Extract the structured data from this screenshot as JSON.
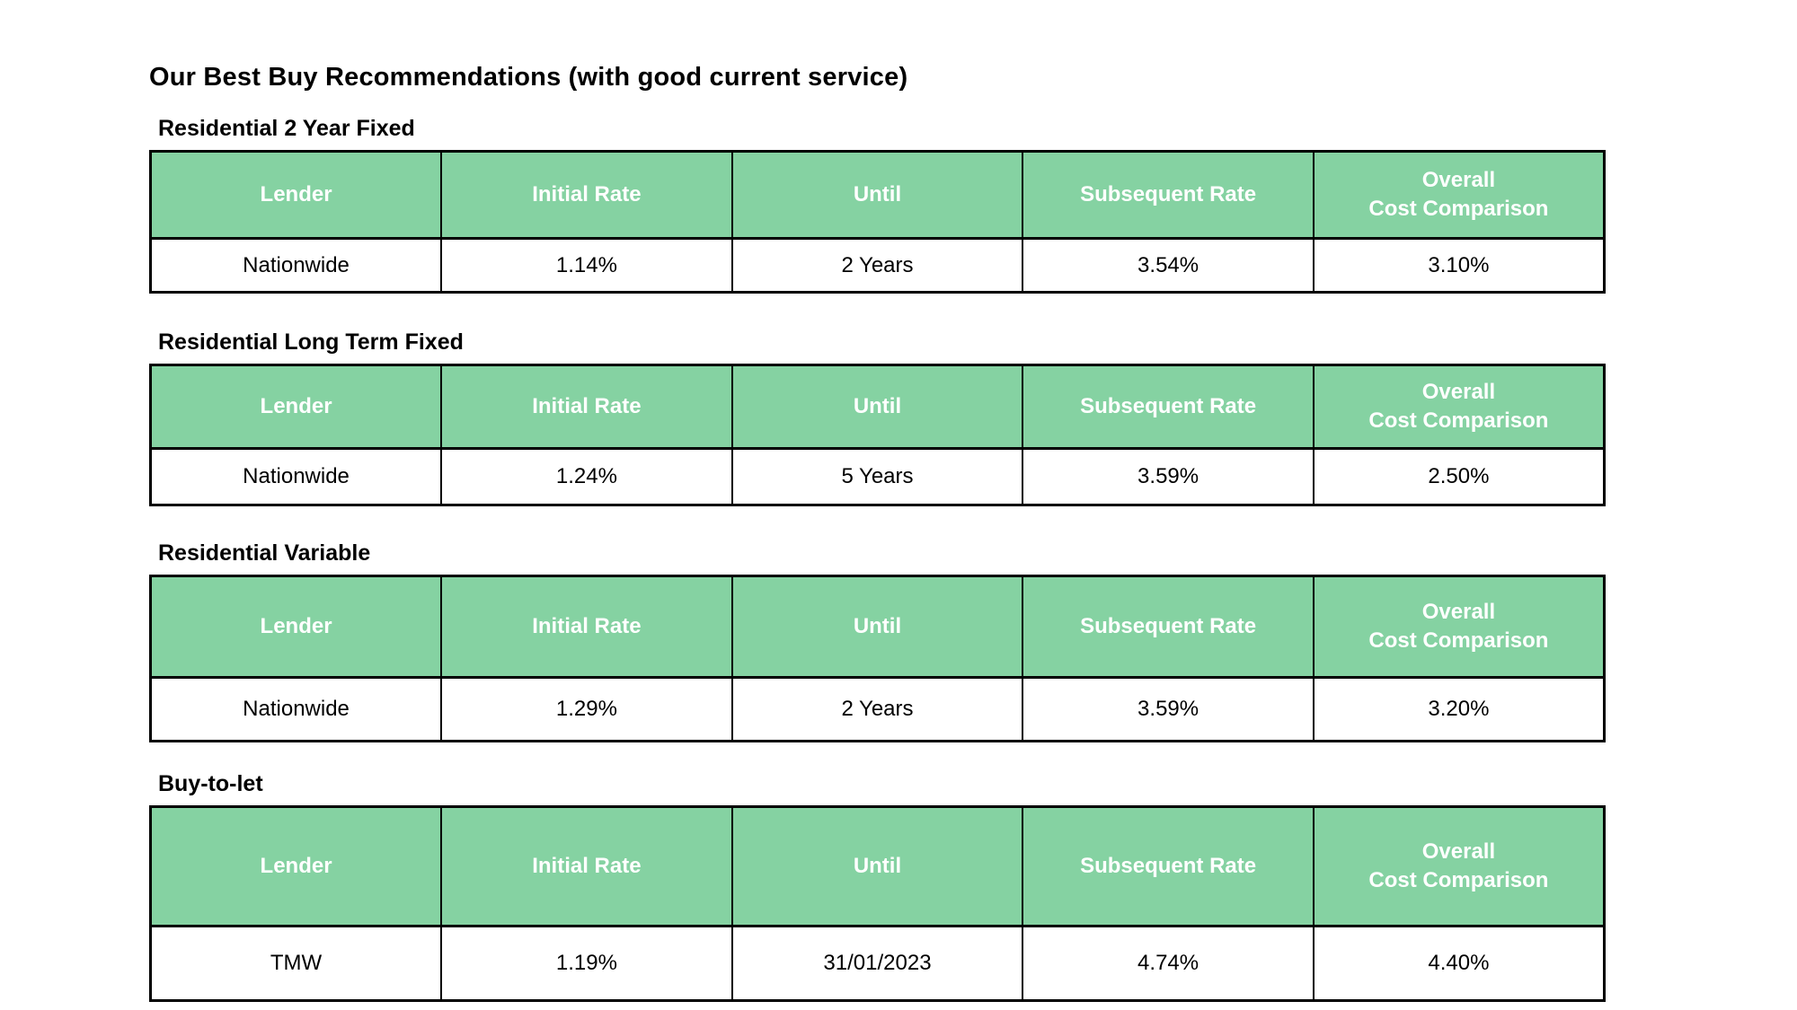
{
  "page": {
    "title": "Our Best Buy Recommendations (with good current service)"
  },
  "columns": [
    "Lender",
    "Initial Rate",
    "Until",
    "Subsequent Rate",
    "Overall\nCost Comparison"
  ],
  "sections": [
    {
      "heading": "Residential 2 Year Fixed",
      "rows": [
        [
          "Nationwide",
          "1.14%",
          "2 Years",
          "3.54%",
          "3.10%"
        ]
      ]
    },
    {
      "heading": "Residential Long Term Fixed",
      "rows": [
        [
          "Nationwide",
          "1.24%",
          "5 Years",
          "3.59%",
          "2.50%"
        ]
      ]
    },
    {
      "heading": "Residential Variable",
      "rows": [
        [
          "Nationwide",
          "1.29%",
          "2 Years",
          "3.59%",
          "3.20%"
        ]
      ]
    },
    {
      "heading": "Buy-to-let",
      "rows": [
        [
          "TMW",
          "1.19%",
          "31/01/2023",
          "4.74%",
          "4.40%"
        ]
      ]
    }
  ],
  "colors": {
    "header_bg": "#85d2a2",
    "header_text": "#ffffff",
    "border": "#000000"
  }
}
